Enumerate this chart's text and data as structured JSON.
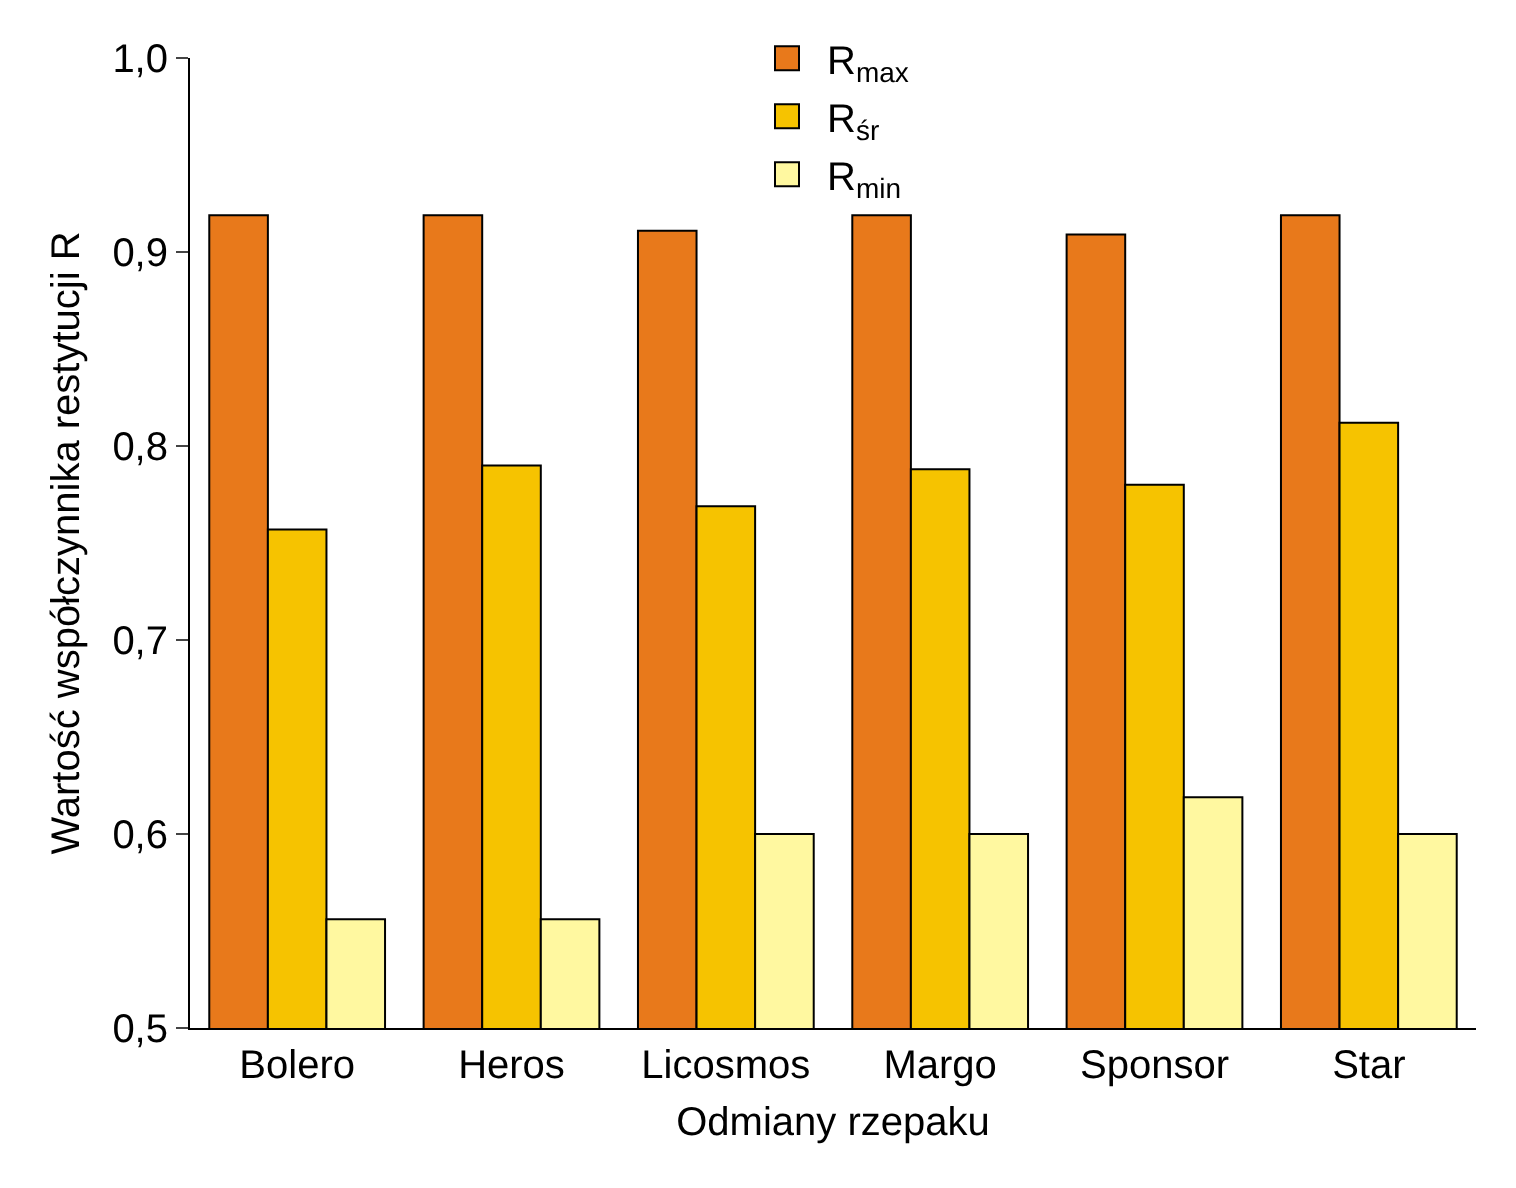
{
  "chart_data": {
    "type": "bar",
    "xlabel": "Odmiany rzepaku",
    "ylabel": "Wartość współczynnika restytucji R",
    "categories": [
      "Bolero",
      "Heros",
      "Licosmos",
      "Margo",
      "Sponsor",
      "Star"
    ],
    "series": [
      {
        "name": "R$_{max}$",
        "color": "#e8791b",
        "values": [
          0.919,
          0.919,
          0.911,
          0.919,
          0.909,
          0.919
        ]
      },
      {
        "name": "R$_{śr}$",
        "color": "#f6c300",
        "values": [
          0.757,
          0.79,
          0.769,
          0.788,
          0.78,
          0.812
        ]
      },
      {
        "name": "R$_{min}$",
        "color": "#fff8a0",
        "values": [
          0.556,
          0.556,
          0.6,
          0.6,
          0.619,
          0.6
        ]
      }
    ],
    "ylim": [
      0.5,
      1.0
    ],
    "yticks": [
      {
        "value": 0.5,
        "label": "0,5"
      },
      {
        "value": 0.6,
        "label": "0,6"
      },
      {
        "value": 0.7,
        "label": "0,7"
      },
      {
        "value": 0.8,
        "label": "0,8"
      },
      {
        "value": 0.9,
        "label": "0,9"
      },
      {
        "value": 1.0,
        "label": "1,0"
      }
    ],
    "grid": false,
    "legend": "top"
  }
}
